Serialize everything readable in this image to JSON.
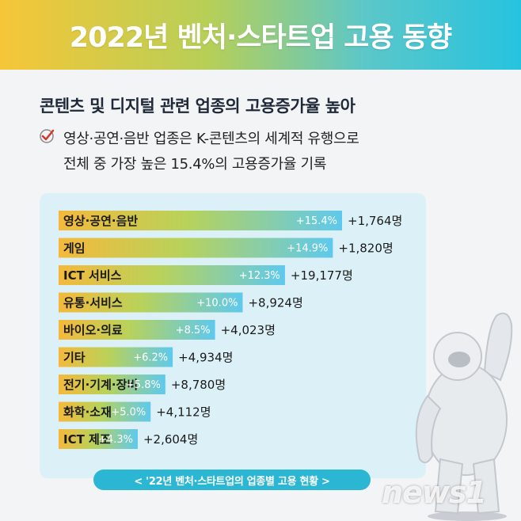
{
  "header": {
    "title": "2022년 벤처·스타트업 고용 동향"
  },
  "subtitle": "콘텐츠 및 디지털 관련 업종의 고용증가율 높아",
  "description": [
    "영상·공연·음반 업종은 K-콘텐츠의 세계적 유행으로",
    "전체 중 가장 높은 15.4%의 고용증가율 기록"
  ],
  "caption": "< '22년 벤처·스타트업의 업종별 고용 현황 >",
  "watermark": "news1",
  "colors": {
    "bar_start": "#f5b93b",
    "bar_end": "#5ec9ee",
    "accent": "#2bb7d3",
    "check": "#d9342b"
  },
  "chart_data": {
    "type": "bar",
    "orientation": "horizontal",
    "categories": [
      "영상·공연·음반",
      "게임",
      "ICT 서비스",
      "유통·서비스",
      "바이오·의료",
      "기타",
      "전기·기계·장비",
      "화학·소재",
      "ICT 제조"
    ],
    "values": [
      15.4,
      14.9,
      12.3,
      10.0,
      8.5,
      6.2,
      5.8,
      5.0,
      4.3
    ],
    "value_labels": [
      "+15.4%",
      "+14.9%",
      "+12.3%",
      "+10.0%",
      "+8.5%",
      "+6.2%",
      "+5.8%",
      "+5.0%",
      "+4.3%"
    ],
    "employment_change_labels": [
      "+1,764명",
      "+1,820명",
      "+19,177명",
      "+8,924명",
      "+4,023명",
      "+4,934명",
      "+8,780명",
      "+4,112명",
      "+2,604명"
    ],
    "xlim": [
      0,
      15.4
    ]
  }
}
